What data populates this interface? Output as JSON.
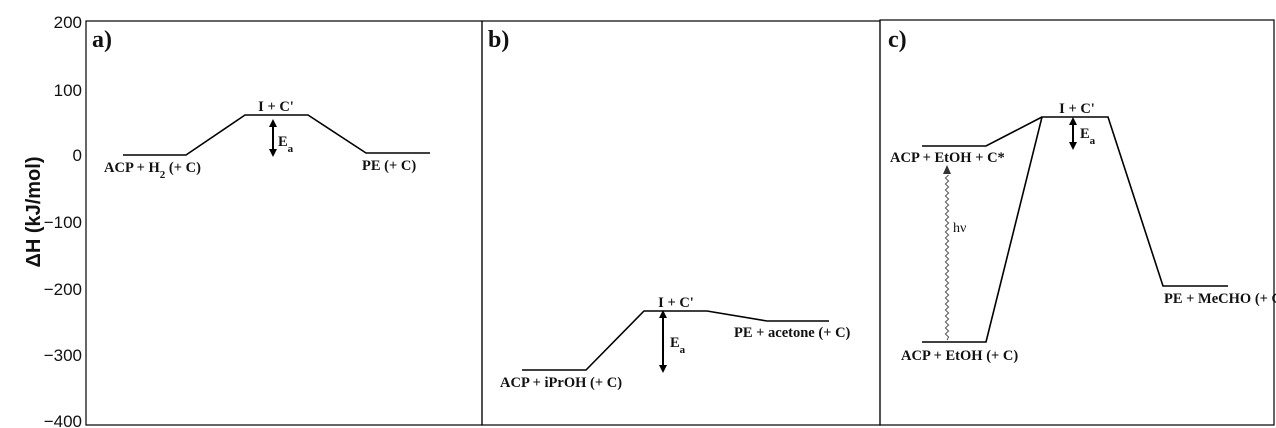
{
  "chart_data": {
    "type": "energy-diagram",
    "ylabel": "ΔH (kJ/mol)",
    "ylim": [
      -400,
      200
    ],
    "yticks": [
      "200",
      "100",
      "0",
      "−100",
      "−200",
      "−300",
      "−400"
    ],
    "ytick_values": [
      200,
      100,
      0,
      -100,
      -200,
      -300,
      -400
    ],
    "panels": [
      {
        "label": "a)",
        "levels": [
          {
            "name": "ACP + H",
            "sub": "2",
            "rest": " (+ C)",
            "y": 0
          },
          {
            "name": "I + C'",
            "sub": "",
            "rest": "",
            "y": 60
          },
          {
            "name": "PE (+ C)",
            "sub": "",
            "rest": "",
            "y": 2
          }
        ],
        "ea": {
          "label": "E",
          "sub": "a"
        }
      },
      {
        "label": "b)",
        "levels": [
          {
            "name": "ACP + iPrOH (+ C)",
            "sub": "",
            "rest": "",
            "y": -318
          },
          {
            "name": "I + C'",
            "sub": "",
            "rest": "",
            "y": -231
          },
          {
            "name": "PE + acetone (+ C)",
            "sub": "",
            "rest": "",
            "y": -246
          }
        ],
        "ea": {
          "label": "E",
          "sub": "a"
        }
      },
      {
        "label": "c)",
        "levels": [
          {
            "name": "ACP + EtOH (+ C)",
            "sub": "",
            "rest": "",
            "y": -278
          },
          {
            "name": "ACP + EtOH + C*",
            "sub": "",
            "rest": "",
            "y": 13
          },
          {
            "name": "I + C'",
            "sub": "",
            "rest": "",
            "y": 58
          },
          {
            "name": "PE + MeCHO (+ C)",
            "sub": "",
            "rest": "",
            "y": -193
          }
        ],
        "ea": {
          "label": "E",
          "sub": "a"
        },
        "photon": {
          "label": "hν"
        }
      }
    ]
  }
}
